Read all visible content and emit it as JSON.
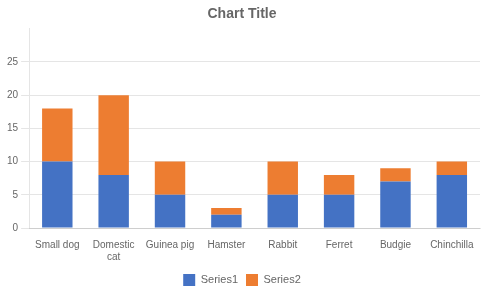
{
  "chart_data": {
    "type": "bar",
    "title": "Chart Title",
    "categories": [
      "Small dog",
      "Domestic\ncat",
      "Guinea pig",
      "Hamster",
      "Rabbit",
      "Ferret",
      "Budgie",
      "Chinchilla"
    ],
    "series": [
      {
        "name": "Series1",
        "color": "#4472C4",
        "values": [
          10,
          8,
          5,
          2,
          5,
          5,
          7,
          8
        ]
      },
      {
        "name": "Series2",
        "color": "#ED7D31",
        "values": [
          8,
          12,
          5,
          1,
          5,
          3,
          2,
          2
        ]
      }
    ],
    "ylim": [
      0,
      30
    ],
    "yticks": [
      0,
      5,
      10,
      15,
      20,
      25
    ],
    "stacked": true,
    "grid": true,
    "legend": "bottom"
  }
}
